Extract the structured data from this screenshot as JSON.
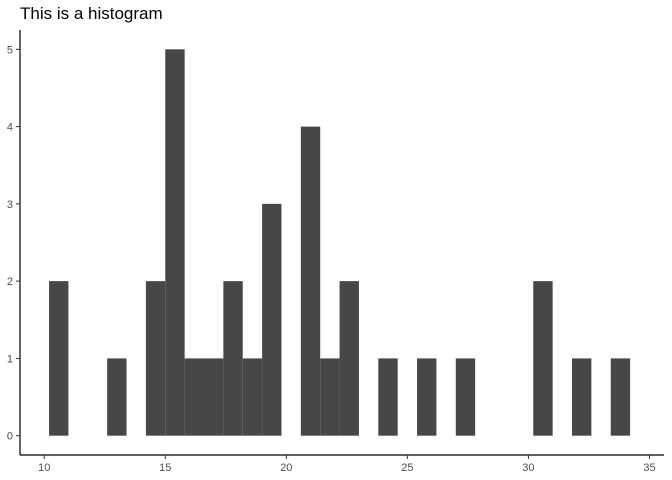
{
  "chart_data": {
    "type": "bar",
    "subtype": "histogram",
    "title": "This is a histogram",
    "xlabel": "",
    "ylabel": "",
    "bin_width": 0.8,
    "bins": [
      {
        "x0": 10.2,
        "x1": 11.0,
        "count": 2
      },
      {
        "x0": 11.0,
        "x1": 11.8,
        "count": 0
      },
      {
        "x0": 11.8,
        "x1": 12.6,
        "count": 0
      },
      {
        "x0": 12.6,
        "x1": 13.4,
        "count": 1
      },
      {
        "x0": 13.4,
        "x1": 14.2,
        "count": 0
      },
      {
        "x0": 14.2,
        "x1": 15.0,
        "count": 2
      },
      {
        "x0": 15.0,
        "x1": 15.8,
        "count": 5
      },
      {
        "x0": 15.8,
        "x1": 16.6,
        "count": 1
      },
      {
        "x0": 16.6,
        "x1": 17.4,
        "count": 1
      },
      {
        "x0": 17.4,
        "x1": 18.2,
        "count": 2
      },
      {
        "x0": 18.2,
        "x1": 19.0,
        "count": 1
      },
      {
        "x0": 19.0,
        "x1": 19.8,
        "count": 3
      },
      {
        "x0": 19.8,
        "x1": 20.6,
        "count": 0
      },
      {
        "x0": 20.6,
        "x1": 21.4,
        "count": 4
      },
      {
        "x0": 21.4,
        "x1": 22.2,
        "count": 1
      },
      {
        "x0": 22.2,
        "x1": 23.0,
        "count": 2
      },
      {
        "x0": 23.0,
        "x1": 23.8,
        "count": 0
      },
      {
        "x0": 23.8,
        "x1": 24.6,
        "count": 1
      },
      {
        "x0": 24.6,
        "x1": 25.4,
        "count": 0
      },
      {
        "x0": 25.4,
        "x1": 26.2,
        "count": 1
      },
      {
        "x0": 26.2,
        "x1": 27.0,
        "count": 0
      },
      {
        "x0": 27.0,
        "x1": 27.8,
        "count": 1
      },
      {
        "x0": 27.8,
        "x1": 28.6,
        "count": 0
      },
      {
        "x0": 28.6,
        "x1": 29.4,
        "count": 0
      },
      {
        "x0": 29.4,
        "x1": 30.2,
        "count": 0
      },
      {
        "x0": 30.2,
        "x1": 31.0,
        "count": 2
      },
      {
        "x0": 31.0,
        "x1": 31.8,
        "count": 0
      },
      {
        "x0": 31.8,
        "x1": 32.6,
        "count": 1
      },
      {
        "x0": 32.6,
        "x1": 33.4,
        "count": 0
      },
      {
        "x0": 33.4,
        "x1": 34.2,
        "count": 1
      }
    ],
    "xlim": [
      9.0,
      35.6
    ],
    "ylim": [
      -0.25,
      5.25
    ],
    "xticks": [
      10,
      15,
      20,
      25,
      30,
      35
    ],
    "yticks": [
      0,
      1,
      2,
      3,
      4,
      5
    ],
    "grid": false,
    "legend": "none",
    "bar_color": "#474747"
  }
}
